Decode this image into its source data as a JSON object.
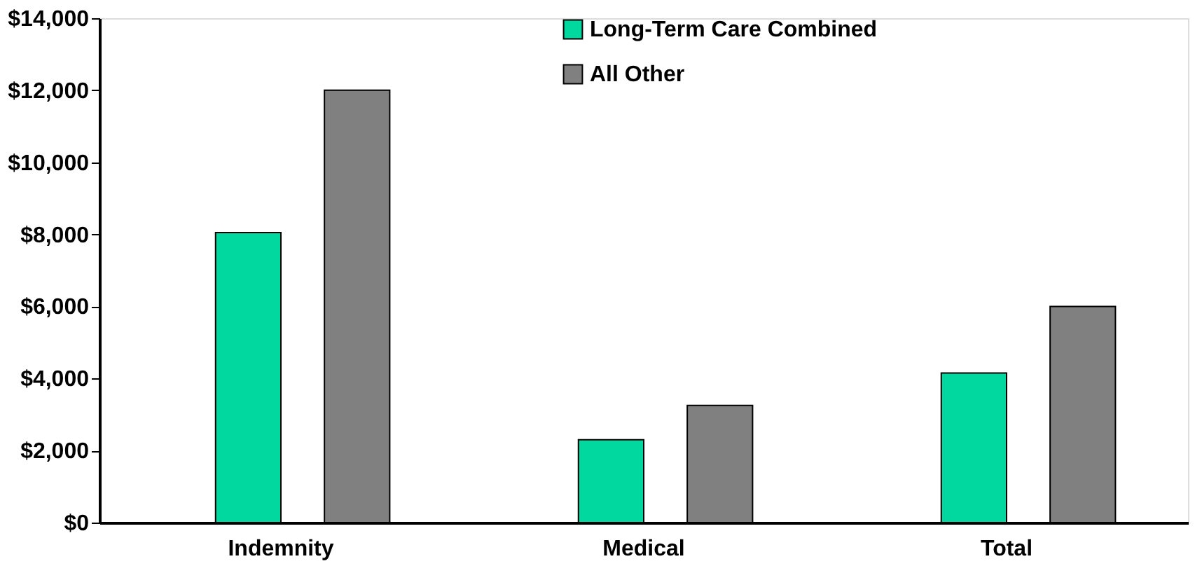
{
  "chart_data": {
    "type": "bar",
    "categories": [
      "Indemnity",
      "Medical",
      "Total"
    ],
    "series": [
      {
        "name": "Long-Term Care Combined",
        "color": "#00d8a0",
        "values": [
          8050,
          2300,
          4150
        ]
      },
      {
        "name": "All Other",
        "color": "#808080",
        "values": [
          12000,
          3250,
          6000
        ]
      }
    ],
    "ylim": [
      0,
      14000
    ],
    "yticks": [
      {
        "value": 0,
        "label": "$0"
      },
      {
        "value": 2000,
        "label": "$2,000"
      },
      {
        "value": 4000,
        "label": "$4,000"
      },
      {
        "value": 6000,
        "label": "$6,000"
      },
      {
        "value": 8000,
        "label": "$8,000"
      },
      {
        "value": 10000,
        "label": "$10,000"
      },
      {
        "value": 12000,
        "label": "$12,000"
      },
      {
        "value": 14000,
        "label": "$14,000"
      }
    ],
    "grid": false,
    "legend": "top"
  }
}
